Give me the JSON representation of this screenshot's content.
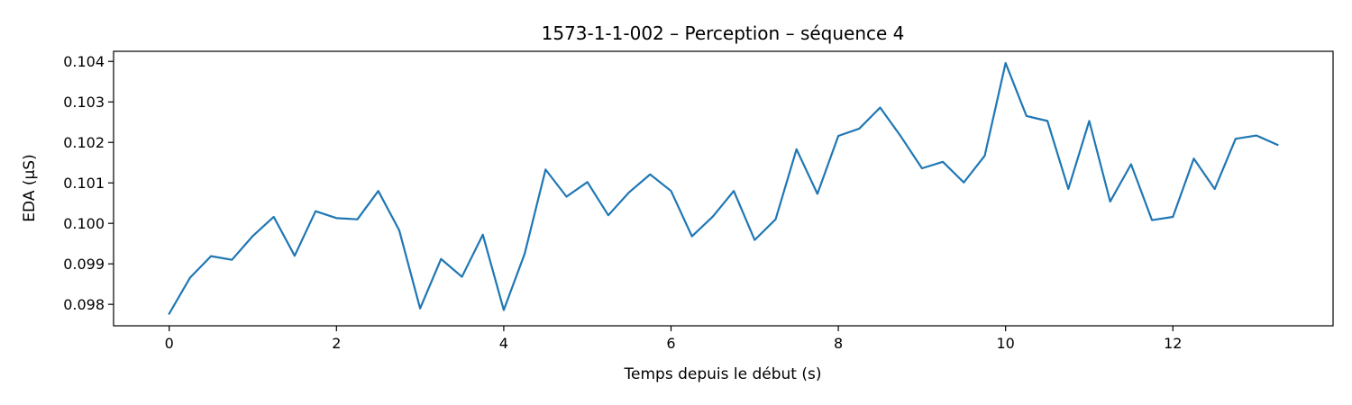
{
  "chart_data": {
    "type": "line",
    "title": "1573-1-1-002 – Perception – séquence 4",
    "xlabel": "Temps depuis le début (s)",
    "ylabel": "EDA (µS)",
    "xlim": [
      -0.665,
      13.915
    ],
    "ylim": [
      0.09747,
      0.10425
    ],
    "xticks": [
      0,
      2,
      4,
      6,
      8,
      10,
      12
    ],
    "xtick_labels": [
      "0",
      "2",
      "4",
      "6",
      "8",
      "10",
      "12"
    ],
    "yticks": [
      0.098,
      0.099,
      0.1,
      0.101,
      0.102,
      0.103,
      0.104
    ],
    "ytick_labels": [
      "0.098",
      "0.099",
      "0.100",
      "0.101",
      "0.102",
      "0.103",
      "0.104"
    ],
    "grid": false,
    "series": [
      {
        "color": "#1f77b4",
        "x": [
          0,
          0.25,
          0.5,
          0.75,
          1,
          1.25,
          1.5,
          1.75,
          2,
          2.25,
          2.5,
          2.75,
          3,
          3.25,
          3.5,
          3.75,
          4,
          4.25,
          4.5,
          4.75,
          5,
          5.25,
          5.5,
          5.75,
          6,
          6.25,
          6.5,
          6.75,
          7,
          7.25,
          7.5,
          7.75,
          8,
          8.25,
          8.5,
          8.75,
          9,
          9.25,
          9.5,
          9.75,
          10,
          10.25,
          10.5,
          10.75,
          11,
          11.25,
          11.5,
          11.75,
          12,
          12.25,
          12.5,
          12.75,
          13,
          13.25
        ],
        "y": [
          0.09777,
          0.09866,
          0.09919,
          0.0991,
          0.09969,
          0.10016,
          0.0992,
          0.1003,
          0.10013,
          0.1001,
          0.1008,
          0.09983,
          0.0979,
          0.09912,
          0.09868,
          0.09972,
          0.09786,
          0.09925,
          0.10133,
          0.10066,
          0.10102,
          0.1002,
          0.10077,
          0.10121,
          0.1008,
          0.09968,
          0.10017,
          0.1008,
          0.09959,
          0.1001,
          0.10183,
          0.10073,
          0.10216,
          0.10234,
          0.10286,
          0.10214,
          0.10136,
          0.10152,
          0.10101,
          0.10167,
          0.10396,
          0.10265,
          0.10253,
          0.10085,
          0.10253,
          0.10054,
          0.10146,
          0.10008,
          0.10016,
          0.1016,
          0.10085,
          0.10209,
          0.10217,
          0.10194
        ]
      }
    ]
  }
}
